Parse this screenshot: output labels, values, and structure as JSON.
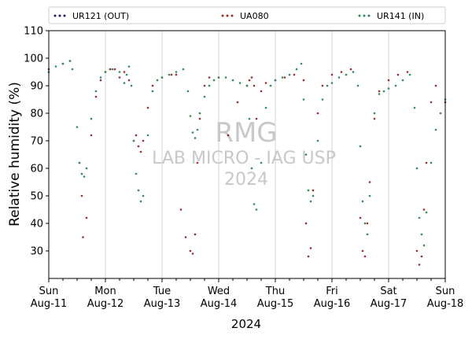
{
  "chart_data": {
    "type": "scatter",
    "xlabel": "2024",
    "ylabel": "Relative humidity (%)",
    "xlim": [
      "2024-08-11T00:00",
      "2024-08-18T00:00"
    ],
    "ylim": [
      20,
      110
    ],
    "yticks": [
      30,
      40,
      50,
      60,
      70,
      80,
      90,
      100,
      110
    ],
    "xticks": [
      {
        "day": "Sun",
        "date": "Aug-11"
      },
      {
        "day": "Mon",
        "date": "Aug-12"
      },
      {
        "day": "Tue",
        "date": "Aug-13"
      },
      {
        "day": "Wed",
        "date": "Aug-14"
      },
      {
        "day": "Thu",
        "date": "Aug-15"
      },
      {
        "day": "Fri",
        "date": "Aug-16"
      },
      {
        "day": "Sat",
        "date": "Aug-17"
      },
      {
        "day": "Sun",
        "date": "Aug-18"
      }
    ],
    "grid": "vertical-daily",
    "legend_position": "top",
    "watermark": [
      "RMG",
      "LAB MICRO - IAG USP",
      "2024"
    ],
    "series": [
      {
        "name": "UR121 (OUT)",
        "color": "#1a1a6e",
        "x": [],
        "y": []
      },
      {
        "name": "UA080",
        "color": "#a32a2a",
        "x": [
          "2024-08-11T00:00",
          "2024-08-11T06:00",
          "2024-08-11T09:00",
          "2024-08-11T13:00",
          "2024-08-11T14:00",
          "2024-08-11T14:30",
          "2024-08-11T16:00",
          "2024-08-11T18:00",
          "2024-08-11T20:00",
          "2024-08-11T22:00",
          "2024-08-12T00:00",
          "2024-08-12T02:00",
          "2024-08-12T04:00",
          "2024-08-12T06:00",
          "2024-08-12T08:00",
          "2024-08-12T10:00",
          "2024-08-12T12:00",
          "2024-08-12T13:00",
          "2024-08-12T14:00",
          "2024-08-12T15:00",
          "2024-08-12T16:00",
          "2024-08-12T18:00",
          "2024-08-12T20:00",
          "2024-08-13T00:00",
          "2024-08-13T04:00",
          "2024-08-13T06:00",
          "2024-08-13T08:00",
          "2024-08-13T10:00",
          "2024-08-13T12:00",
          "2024-08-13T13:00",
          "2024-08-13T14:00",
          "2024-08-13T15:00",
          "2024-08-13T16:00",
          "2024-08-13T18:00",
          "2024-08-13T20:00",
          "2024-08-14T00:00",
          "2024-08-14T04:00",
          "2024-08-14T08:00",
          "2024-08-14T12:00",
          "2024-08-14T13:00",
          "2024-08-14T14:00",
          "2024-08-14T15:00",
          "2024-08-14T16:00",
          "2024-08-14T18:00",
          "2024-08-14T20:00",
          "2024-08-15T00:00",
          "2024-08-15T04:00",
          "2024-08-15T08:00",
          "2024-08-15T12:00",
          "2024-08-15T13:00",
          "2024-08-15T14:00",
          "2024-08-15T15:00",
          "2024-08-15T16:00",
          "2024-08-15T18:00",
          "2024-08-15T20:00",
          "2024-08-16T00:00",
          "2024-08-16T04:00",
          "2024-08-16T08:00",
          "2024-08-16T12:00",
          "2024-08-16T13:00",
          "2024-08-16T14:00",
          "2024-08-16T15:00",
          "2024-08-16T16:00",
          "2024-08-16T18:00",
          "2024-08-16T20:00",
          "2024-08-17T00:00",
          "2024-08-17T04:00",
          "2024-08-17T08:00",
          "2024-08-17T12:00",
          "2024-08-17T13:00",
          "2024-08-17T14:00",
          "2024-08-17T15:00",
          "2024-08-17T16:00",
          "2024-08-17T18:00",
          "2024-08-17T20:00",
          "2024-08-18T00:00"
        ],
        "y": [
          96,
          98,
          99,
          62,
          50,
          35,
          42,
          72,
          86,
          92,
          95,
          96,
          96,
          93,
          95,
          92,
          70,
          72,
          68,
          66,
          70,
          82,
          90,
          93,
          94,
          94,
          45,
          35,
          30,
          29,
          36,
          62,
          78,
          90,
          93,
          93,
          72,
          84,
          90,
          92,
          93,
          90,
          78,
          88,
          91,
          92,
          93,
          94,
          92,
          40,
          28,
          31,
          52,
          80,
          90,
          94,
          95,
          96,
          42,
          30,
          28,
          40,
          55,
          78,
          88,
          92,
          94,
          95,
          30,
          25,
          28,
          45,
          62,
          84,
          90,
          84
        ]
      },
      {
        "name": "UR141 (IN)",
        "color": "#2e8b57",
        "x": [
          "2024-08-11T00:00",
          "2024-08-11T03:00",
          "2024-08-11T06:00",
          "2024-08-11T09:00",
          "2024-08-11T10:00",
          "2024-08-11T12:00",
          "2024-08-11T13:00",
          "2024-08-11T14:00",
          "2024-08-11T15:00",
          "2024-08-11T16:00",
          "2024-08-11T18:00",
          "2024-08-11T20:00",
          "2024-08-11T22:00",
          "2024-08-12T00:00",
          "2024-08-12T03:00",
          "2024-08-12T06:00",
          "2024-08-12T08:00",
          "2024-08-12T09:00",
          "2024-08-12T10:00",
          "2024-08-12T11:00",
          "2024-08-12T12:00",
          "2024-08-12T13:00",
          "2024-08-12T14:00",
          "2024-08-12T15:00",
          "2024-08-12T16:00",
          "2024-08-12T18:00",
          "2024-08-12T20:00",
          "2024-08-12T22:00",
          "2024-08-13T00:00",
          "2024-08-13T03:00",
          "2024-08-13T06:00",
          "2024-08-13T09:00",
          "2024-08-13T11:00",
          "2024-08-13T12:00",
          "2024-08-13T13:00",
          "2024-08-13T14:00",
          "2024-08-13T15:00",
          "2024-08-13T16:00",
          "2024-08-13T18:00",
          "2024-08-13T20:00",
          "2024-08-13T22:00",
          "2024-08-14T00:00",
          "2024-08-14T03:00",
          "2024-08-14T06:00",
          "2024-08-14T09:00",
          "2024-08-14T12:00",
          "2024-08-14T13:00",
          "2024-08-14T14:00",
          "2024-08-14T15:00",
          "2024-08-14T16:00",
          "2024-08-14T18:00",
          "2024-08-14T20:00",
          "2024-08-14T22:00",
          "2024-08-15T00:00",
          "2024-08-15T03:00",
          "2024-08-15T06:00",
          "2024-08-15T09:00",
          "2024-08-15T11:00",
          "2024-08-15T12:00",
          "2024-08-15T13:00",
          "2024-08-15T14:00",
          "2024-08-15T15:00",
          "2024-08-15T16:00",
          "2024-08-15T18:00",
          "2024-08-15T20:00",
          "2024-08-15T22:00",
          "2024-08-16T00:00",
          "2024-08-16T03:00",
          "2024-08-16T06:00",
          "2024-08-16T09:00",
          "2024-08-16T11:00",
          "2024-08-16T12:00",
          "2024-08-16T13:00",
          "2024-08-16T14:00",
          "2024-08-16T15:00",
          "2024-08-16T16:00",
          "2024-08-16T18:00",
          "2024-08-16T20:00",
          "2024-08-16T22:00",
          "2024-08-17T00:00",
          "2024-08-17T03:00",
          "2024-08-17T06:00",
          "2024-08-17T09:00",
          "2024-08-17T11:00",
          "2024-08-17T12:00",
          "2024-08-17T13:00",
          "2024-08-17T14:00",
          "2024-08-17T15:00",
          "2024-08-17T16:00",
          "2024-08-17T18:00",
          "2024-08-17T20:00",
          "2024-08-17T22:00",
          "2024-08-18T00:00"
        ],
        "y": [
          95,
          97,
          98,
          99,
          96,
          75,
          62,
          58,
          57,
          60,
          78,
          88,
          93,
          95,
          96,
          95,
          91,
          94,
          97,
          90,
          70,
          58,
          52,
          48,
          50,
          72,
          88,
          92,
          93,
          94,
          95,
          96,
          88,
          79,
          73,
          71,
          74,
          80,
          86,
          90,
          92,
          93,
          93,
          92,
          91,
          90,
          78,
          60,
          47,
          45,
          62,
          82,
          90,
          92,
          93,
          94,
          96,
          98,
          85,
          65,
          52,
          48,
          50,
          70,
          85,
          90,
          91,
          93,
          94,
          95,
          90,
          68,
          48,
          40,
          36,
          50,
          80,
          87,
          88,
          89,
          90,
          92,
          94,
          82,
          60,
          42,
          36,
          32,
          44,
          62,
          74,
          80,
          85
        ]
      }
    ]
  }
}
